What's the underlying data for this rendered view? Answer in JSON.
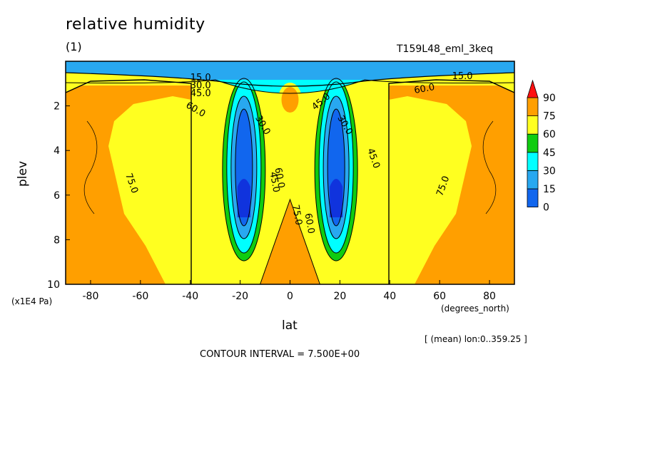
{
  "chart_data": {
    "type": "heatmap",
    "title": "relative humidity",
    "subtitle": "(1)",
    "run_id": "T159L48_eml_3keq",
    "xlabel": "lat",
    "ylabel": "plev",
    "x_unit": "(degrees_north)",
    "y_unit": "(x1E4 Pa)",
    "xlim": [
      -90,
      90
    ],
    "ylim": [
      10,
      0
    ],
    "x_ticks": [
      "-80",
      "-60",
      "-40",
      "-20",
      "0",
      "20",
      "40",
      "60",
      "80"
    ],
    "y_ticks": [
      "2",
      "4",
      "6",
      "8",
      "10"
    ],
    "colorbar": {
      "levels": [
        "0",
        "15",
        "30",
        "45",
        "60",
        "75",
        "90"
      ],
      "colors": [
        "#1166ee",
        "#28a8f0",
        "#00ffff",
        "#10cc10",
        "#ffff20",
        "#ff9f00",
        "#ff1010"
      ]
    },
    "contour_labels": [
      "15.0",
      "30.0",
      "45.0",
      "60.0",
      "75.0"
    ],
    "averaging_note": "[ (mean) lon:0..359.25 ]",
    "contour_interval": "CONTOUR INTERVAL = 7.500E+00",
    "regions": [
      {
        "label": "tropopause_dry_layer",
        "value": 10
      },
      {
        "label": "subtropical_dry_zone_south",
        "center_lat": -18,
        "center_plev": 6,
        "min_value": 10
      },
      {
        "label": "subtropical_dry_zone_north",
        "center_lat": 18,
        "center_plev": 6,
        "min_value": 10
      },
      {
        "label": "equatorial_moist_column",
        "center_lat": 0,
        "value": 70
      },
      {
        "label": "midlatitude_moist_south",
        "center_lat": -70,
        "value": 78
      },
      {
        "label": "midlatitude_moist_north",
        "center_lat": 70,
        "value": 78
      }
    ]
  }
}
